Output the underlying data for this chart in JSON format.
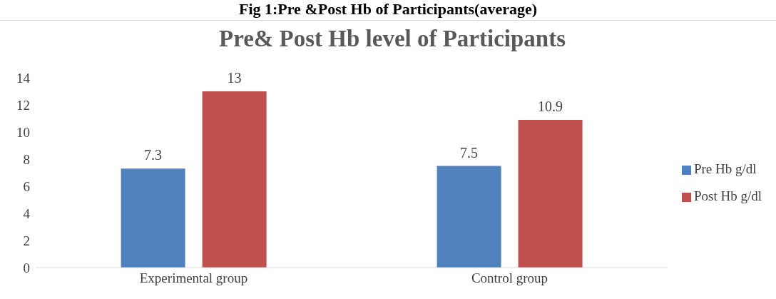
{
  "chart_data": {
    "type": "bar",
    "title": "Pre& Post Hb level of Participants",
    "annotations": [
      "Fig 1:Pre &Post Hb of Participants(average)"
    ],
    "categories": [
      "Experimental group",
      "Control group"
    ],
    "series": [
      {
        "name": "Pre Hb g/dl",
        "color": "#4f81bd",
        "values": [
          7.3,
          7.5
        ]
      },
      {
        "name": "Post Hb g/dl",
        "color": "#c0504d",
        "values": [
          13,
          10.9
        ]
      }
    ],
    "ylim": [
      0,
      14
    ],
    "yticks": [
      0,
      2,
      4,
      6,
      8,
      10,
      12,
      14
    ],
    "grid": false,
    "legend": "right",
    "data_labels": true
  }
}
